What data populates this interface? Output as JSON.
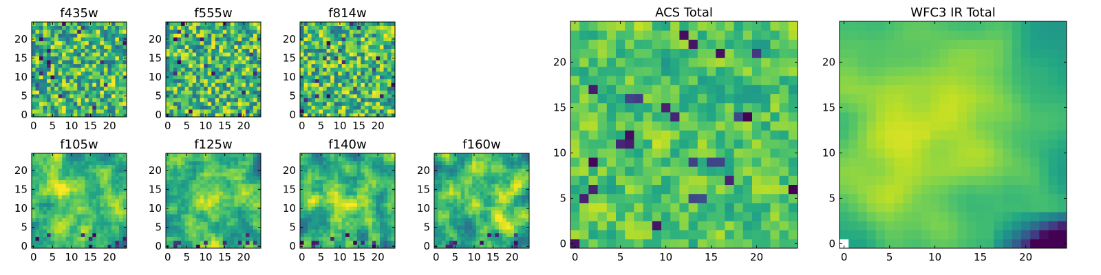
{
  "figure": {
    "colormap": "viridis",
    "background": "#ffffff"
  },
  "chart_data": [
    {
      "type": "heatmap",
      "title": "f435w",
      "shape": [
        25,
        25
      ],
      "xlim": [
        0,
        24
      ],
      "ylim": [
        0,
        24
      ],
      "xticks": [
        "0",
        "5",
        "10",
        "15",
        "20"
      ],
      "yticks": [
        "0",
        "5",
        "10",
        "15",
        "20"
      ],
      "origin": "lower",
      "noise": "high",
      "seed": 11
    },
    {
      "type": "heatmap",
      "title": "f555w",
      "shape": [
        25,
        25
      ],
      "xlim": [
        0,
        24
      ],
      "ylim": [
        0,
        24
      ],
      "xticks": [
        "0",
        "5",
        "10",
        "15",
        "20"
      ],
      "yticks": [
        "0",
        "5",
        "10",
        "15",
        "20"
      ],
      "origin": "lower",
      "noise": "high",
      "seed": 23
    },
    {
      "type": "heatmap",
      "title": "f814w",
      "shape": [
        25,
        25
      ],
      "xlim": [
        0,
        24
      ],
      "ylim": [
        0,
        24
      ],
      "xticks": [
        "0",
        "5",
        "10",
        "15",
        "20"
      ],
      "yticks": [
        "0",
        "5",
        "10",
        "15",
        "20"
      ],
      "origin": "lower",
      "noise": "high",
      "seed": 37
    },
    {
      "type": "heatmap",
      "title": "f105w",
      "shape": [
        25,
        25
      ],
      "xlim": [
        0,
        24
      ],
      "ylim": [
        0,
        24
      ],
      "xticks": [
        "0",
        "5",
        "10",
        "15",
        "20"
      ],
      "yticks": [
        "0",
        "5",
        "10",
        "15",
        "20"
      ],
      "origin": "lower",
      "noise": "smooth",
      "seed": 41
    },
    {
      "type": "heatmap",
      "title": "f125w",
      "shape": [
        25,
        25
      ],
      "xlim": [
        0,
        24
      ],
      "ylim": [
        0,
        24
      ],
      "xticks": [
        "0",
        "5",
        "10",
        "15",
        "20"
      ],
      "yticks": [
        "0",
        "5",
        "10",
        "15",
        "20"
      ],
      "origin": "lower",
      "noise": "smooth",
      "seed": 53
    },
    {
      "type": "heatmap",
      "title": "f140w",
      "shape": [
        25,
        25
      ],
      "xlim": [
        0,
        24
      ],
      "ylim": [
        0,
        24
      ],
      "xticks": [
        "0",
        "5",
        "10",
        "15",
        "20"
      ],
      "yticks": [
        "0",
        "5",
        "10",
        "15",
        "20"
      ],
      "origin": "lower",
      "noise": "smooth",
      "seed": 67
    },
    {
      "type": "heatmap",
      "title": "f160w",
      "shape": [
        25,
        25
      ],
      "xlim": [
        0,
        24
      ],
      "ylim": [
        0,
        24
      ],
      "xticks": [
        "0",
        "5",
        "10",
        "15",
        "20"
      ],
      "yticks": [
        "0",
        "5",
        "10",
        "15",
        "20"
      ],
      "origin": "lower",
      "noise": "smooth",
      "seed": 79
    },
    {
      "type": "heatmap",
      "title": "ACS Total",
      "shape": [
        25,
        25
      ],
      "xlim": [
        0,
        24
      ],
      "ylim": [
        0,
        24
      ],
      "xticks": [
        "0",
        "5",
        "10",
        "15",
        "20"
      ],
      "yticks": [
        "0",
        "5",
        "10",
        "15",
        "20"
      ],
      "origin": "lower",
      "noise": "medium",
      "seed": 97
    },
    {
      "type": "heatmap",
      "title": "WFC3 IR Total",
      "shape": [
        25,
        25
      ],
      "xlim": [
        0,
        24
      ],
      "ylim": [
        0,
        24
      ],
      "xticks": [
        "0",
        "5",
        "10",
        "15",
        "20"
      ],
      "yticks": [
        "0",
        "5",
        "10",
        "15",
        "20"
      ],
      "origin": "lower",
      "noise": "smooth-total",
      "seed": 131
    }
  ]
}
